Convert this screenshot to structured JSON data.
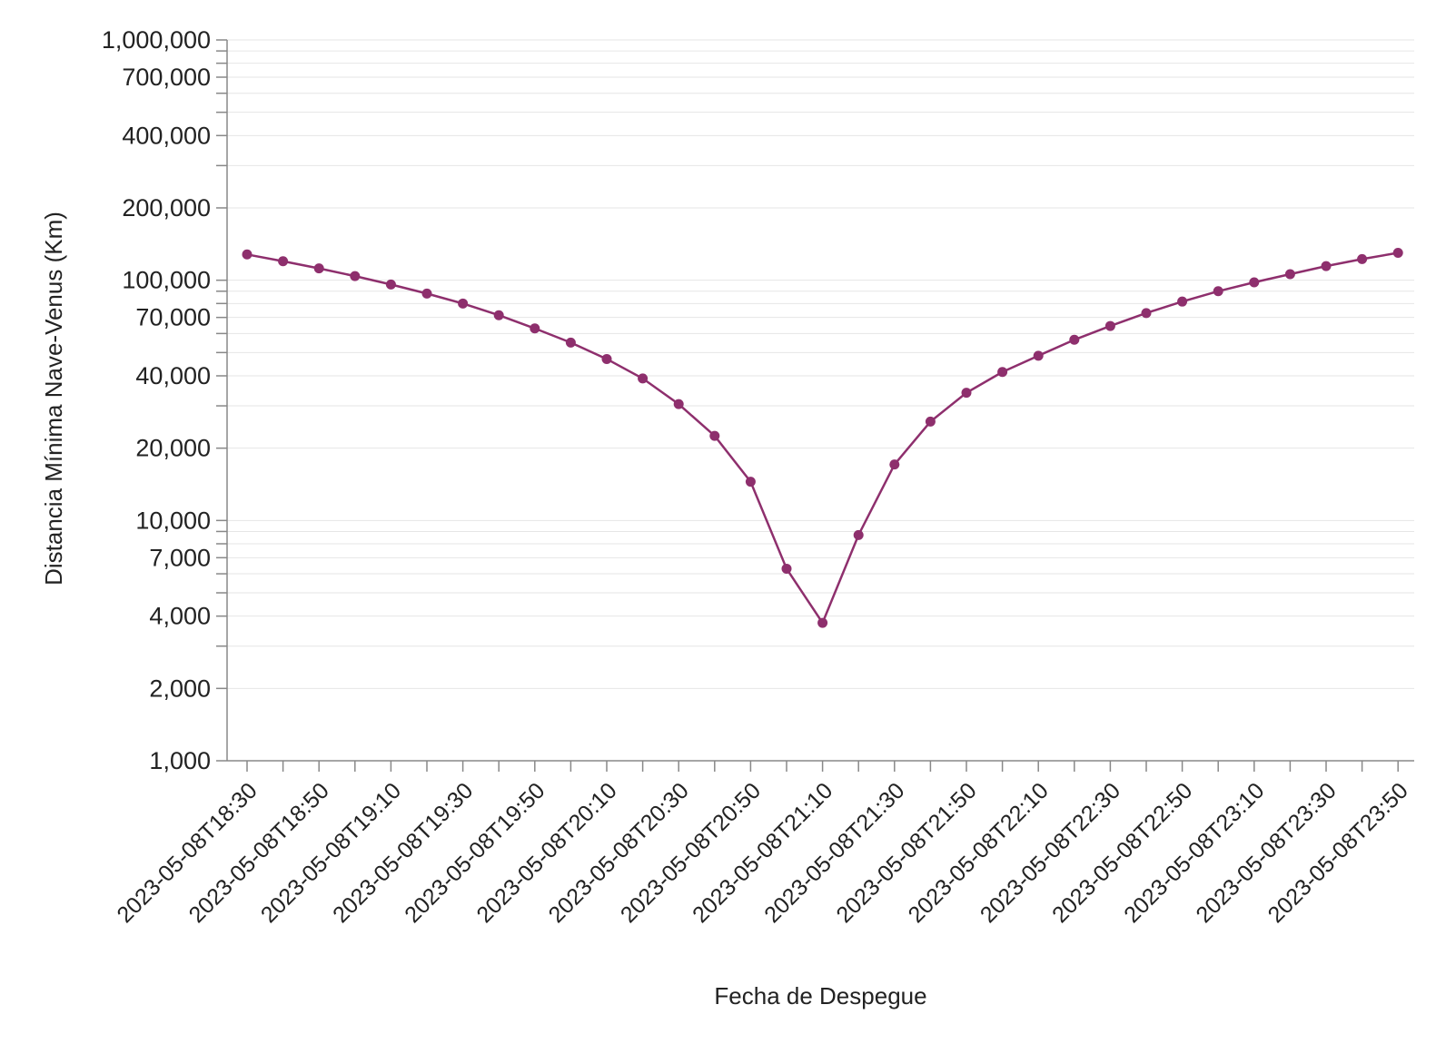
{
  "chart_data": {
    "type": "line",
    "xlabel": "Fecha de Despegue",
    "ylabel": "Distancia Mínima Nave-Venus (Km)",
    "y_scale": "log",
    "ylim": [
      1000,
      1000000
    ],
    "y_ticks": [
      1000,
      2000,
      3000,
      4000,
      5000,
      6000,
      7000,
      8000,
      9000,
      10000,
      20000,
      30000,
      40000,
      50000,
      60000,
      70000,
      80000,
      90000,
      100000,
      200000,
      300000,
      400000,
      500000,
      600000,
      700000,
      800000,
      900000,
      1000000
    ],
    "y_tick_labels": [
      {
        "value": 1000,
        "label": "1,000"
      },
      {
        "value": 2000,
        "label": "2,000"
      },
      {
        "value": 4000,
        "label": "4,000"
      },
      {
        "value": 7000,
        "label": "7,000"
      },
      {
        "value": 10000,
        "label": "10,000"
      },
      {
        "value": 20000,
        "label": "20,000"
      },
      {
        "value": 40000,
        "label": "40,000"
      },
      {
        "value": 70000,
        "label": "70,000"
      },
      {
        "value": 100000,
        "label": "100,000"
      },
      {
        "value": 200000,
        "label": "200,000"
      },
      {
        "value": 400000,
        "label": "400,000"
      },
      {
        "value": 700000,
        "label": "700,000"
      },
      {
        "value": 1000000,
        "label": "1,000,000"
      }
    ],
    "x_tick_labels": [
      "2023-05-08T18:30",
      "2023-05-08T18:50",
      "2023-05-08T19:10",
      "2023-05-08T19:30",
      "2023-05-08T19:50",
      "2023-05-08T20:10",
      "2023-05-08T20:30",
      "2023-05-08T20:50",
      "2023-05-08T21:10",
      "2023-05-08T21:30",
      "2023-05-08T21:50",
      "2023-05-08T22:10",
      "2023-05-08T22:30",
      "2023-05-08T22:50",
      "2023-05-08T23:10",
      "2023-05-08T23:30",
      "2023-05-08T23:50"
    ],
    "grid": true,
    "series": [
      {
        "color": "#8e2f6d",
        "x": [
          "2023-05-08T18:30",
          "2023-05-08T18:40",
          "2023-05-08T18:50",
          "2023-05-08T19:00",
          "2023-05-08T19:10",
          "2023-05-08T19:20",
          "2023-05-08T19:30",
          "2023-05-08T19:40",
          "2023-05-08T19:50",
          "2023-05-08T20:00",
          "2023-05-08T20:10",
          "2023-05-08T20:20",
          "2023-05-08T20:30",
          "2023-05-08T20:40",
          "2023-05-08T20:50",
          "2023-05-08T21:00",
          "2023-05-08T21:10",
          "2023-05-08T21:20",
          "2023-05-08T21:30",
          "2023-05-08T21:40",
          "2023-05-08T21:50",
          "2023-05-08T22:00",
          "2023-05-08T22:10",
          "2023-05-08T22:20",
          "2023-05-08T22:30",
          "2023-05-08T22:40",
          "2023-05-08T22:50",
          "2023-05-08T23:00",
          "2023-05-08T23:10",
          "2023-05-08T23:20",
          "2023-05-08T23:30",
          "2023-05-08T23:40",
          "2023-05-08T23:50"
        ],
        "y": [
          128000,
          120000,
          112000,
          104000,
          96000,
          88000,
          80000,
          71500,
          63000,
          55000,
          47000,
          39000,
          30500,
          22500,
          14500,
          6300,
          3750,
          8700,
          17100,
          25800,
          34000,
          41500,
          48500,
          56500,
          64500,
          73000,
          81500,
          90000,
          98000,
          106000,
          114500,
          122500,
          130000
        ]
      }
    ]
  }
}
